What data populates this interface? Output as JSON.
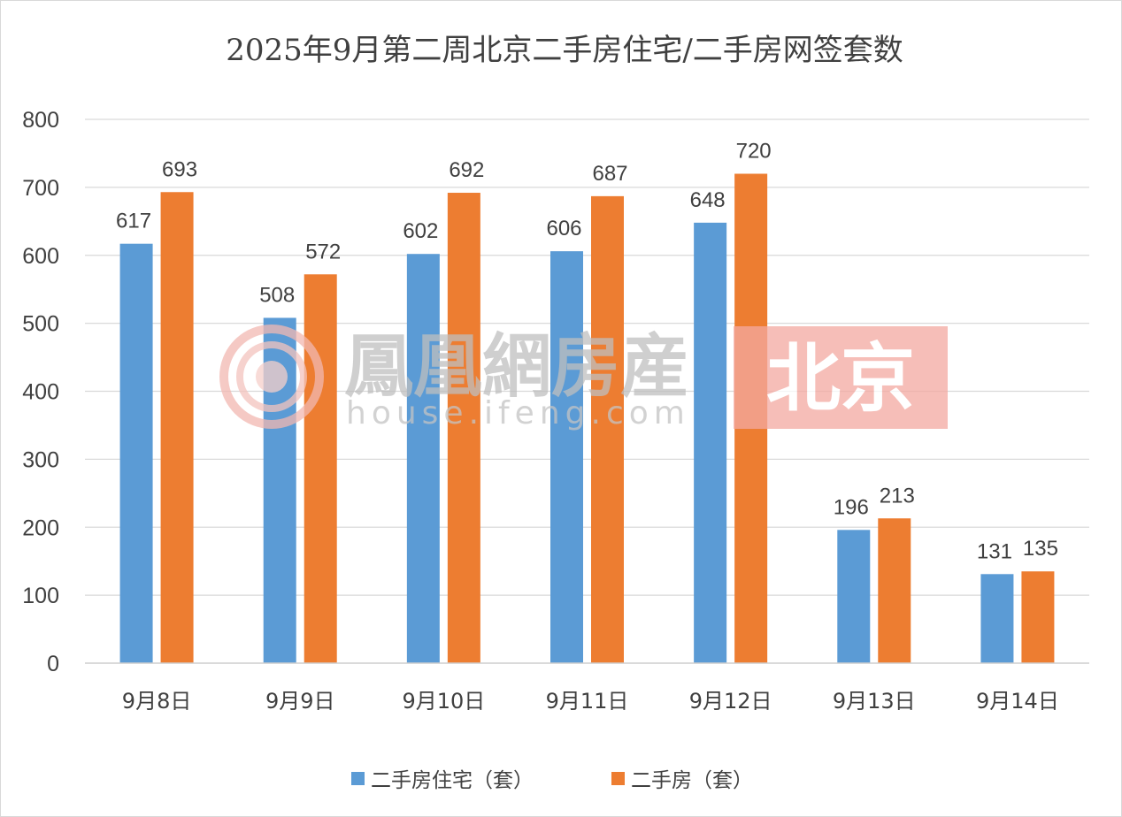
{
  "chart_data": {
    "type": "bar",
    "title": "2025年9月第二周北京二手房住宅/二手房网签套数",
    "categories": [
      "9月8日",
      "9月9日",
      "9月10日",
      "9月11日",
      "9月12日",
      "9月13日",
      "9月14日"
    ],
    "series": [
      {
        "name": "二手房住宅（套）",
        "color": "#5b9bd5",
        "values": [
          617,
          508,
          602,
          606,
          648,
          196,
          131
        ]
      },
      {
        "name": "二手房（套）",
        "color": "#ed7d31",
        "values": [
          693,
          572,
          692,
          687,
          720,
          213,
          135
        ]
      }
    ],
    "ylim": [
      0,
      800
    ],
    "yticks": [
      0,
      100,
      200,
      300,
      400,
      500,
      600,
      700,
      800
    ],
    "grid": true,
    "legend_position": "bottom",
    "data_labels": true
  },
  "watermark": {
    "brand": "鳳凰網房産",
    "url": "house.ifeng.com",
    "city": "北京",
    "logo_icon": "phoenix-logo-icon",
    "city_badge_color": "#f4a9a1"
  }
}
